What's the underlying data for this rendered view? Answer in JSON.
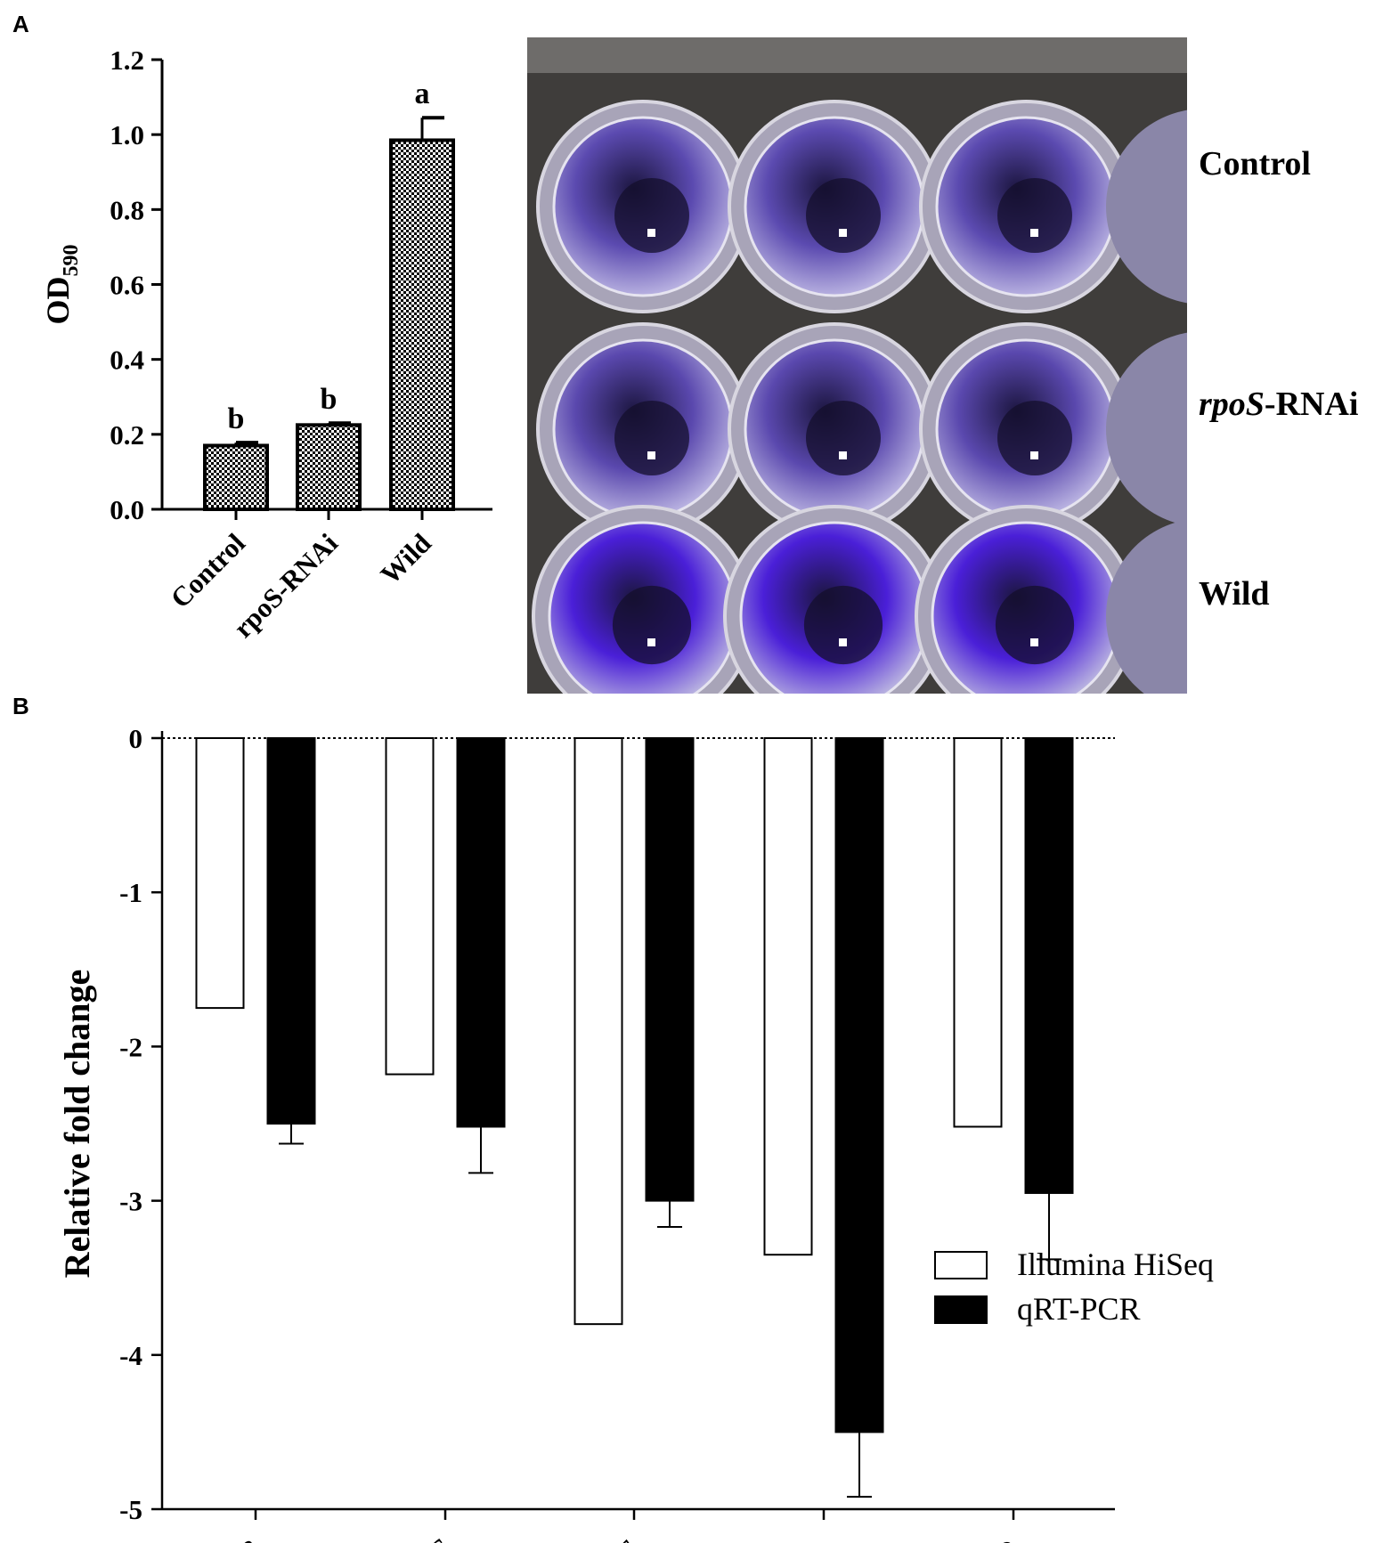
{
  "panel_labels": {
    "a": "A",
    "b": "B"
  },
  "photo": {
    "row_labels": {
      "control": "Control",
      "rpos_italic": "rpoS",
      "rpos_rest": "-RNAi",
      "wild": "Wild"
    },
    "well_colors": {
      "control": "#5b4ab0",
      "rpos": "#5a48ae",
      "wild": "#4a1fd8"
    }
  },
  "chart_data": [
    {
      "type": "bar",
      "title": "",
      "ylabel_main": "OD",
      "ylabel_sub": "590",
      "xlabel": "",
      "categories": [
        "Control",
        "rpoS-RNAi",
        "Wild"
      ],
      "values": [
        0.17,
        0.225,
        0.985
      ],
      "errors": [
        0.008,
        0.005,
        0.06
      ],
      "significance": [
        "b",
        "b",
        "a"
      ],
      "ylim": [
        0.0,
        1.2
      ],
      "yticks": [
        "0.0",
        "0.2",
        "0.4",
        "0.6",
        "0.8",
        "1.0",
        "1.2"
      ],
      "grid": false,
      "fill": "checkered"
    },
    {
      "type": "bar",
      "title": "",
      "ylabel": "Relative fold change",
      "xlabel": "",
      "categories": [
        "glpB",
        "glpC",
        "glpE",
        "hmsh",
        "algD"
      ],
      "series": [
        {
          "name": "Illumina HiSeq",
          "color": "#ffffff",
          "values": [
            -1.75,
            -2.18,
            -3.8,
            -3.35,
            -2.52
          ],
          "errors": [
            0,
            0,
            0,
            0,
            0
          ]
        },
        {
          "name": "qRT-PCR",
          "color": "#000000",
          "values": [
            -2.5,
            -2.52,
            -3.0,
            -4.5,
            -2.95
          ],
          "errors": [
            0.13,
            0.3,
            0.17,
            0.42,
            0.43
          ]
        }
      ],
      "ylim": [
        -5,
        0
      ],
      "yticks": [
        "0",
        "-1",
        "-2",
        "-3",
        "-4",
        "-5"
      ],
      "grid": false,
      "zero_line": "dotted",
      "legend": "right"
    }
  ]
}
